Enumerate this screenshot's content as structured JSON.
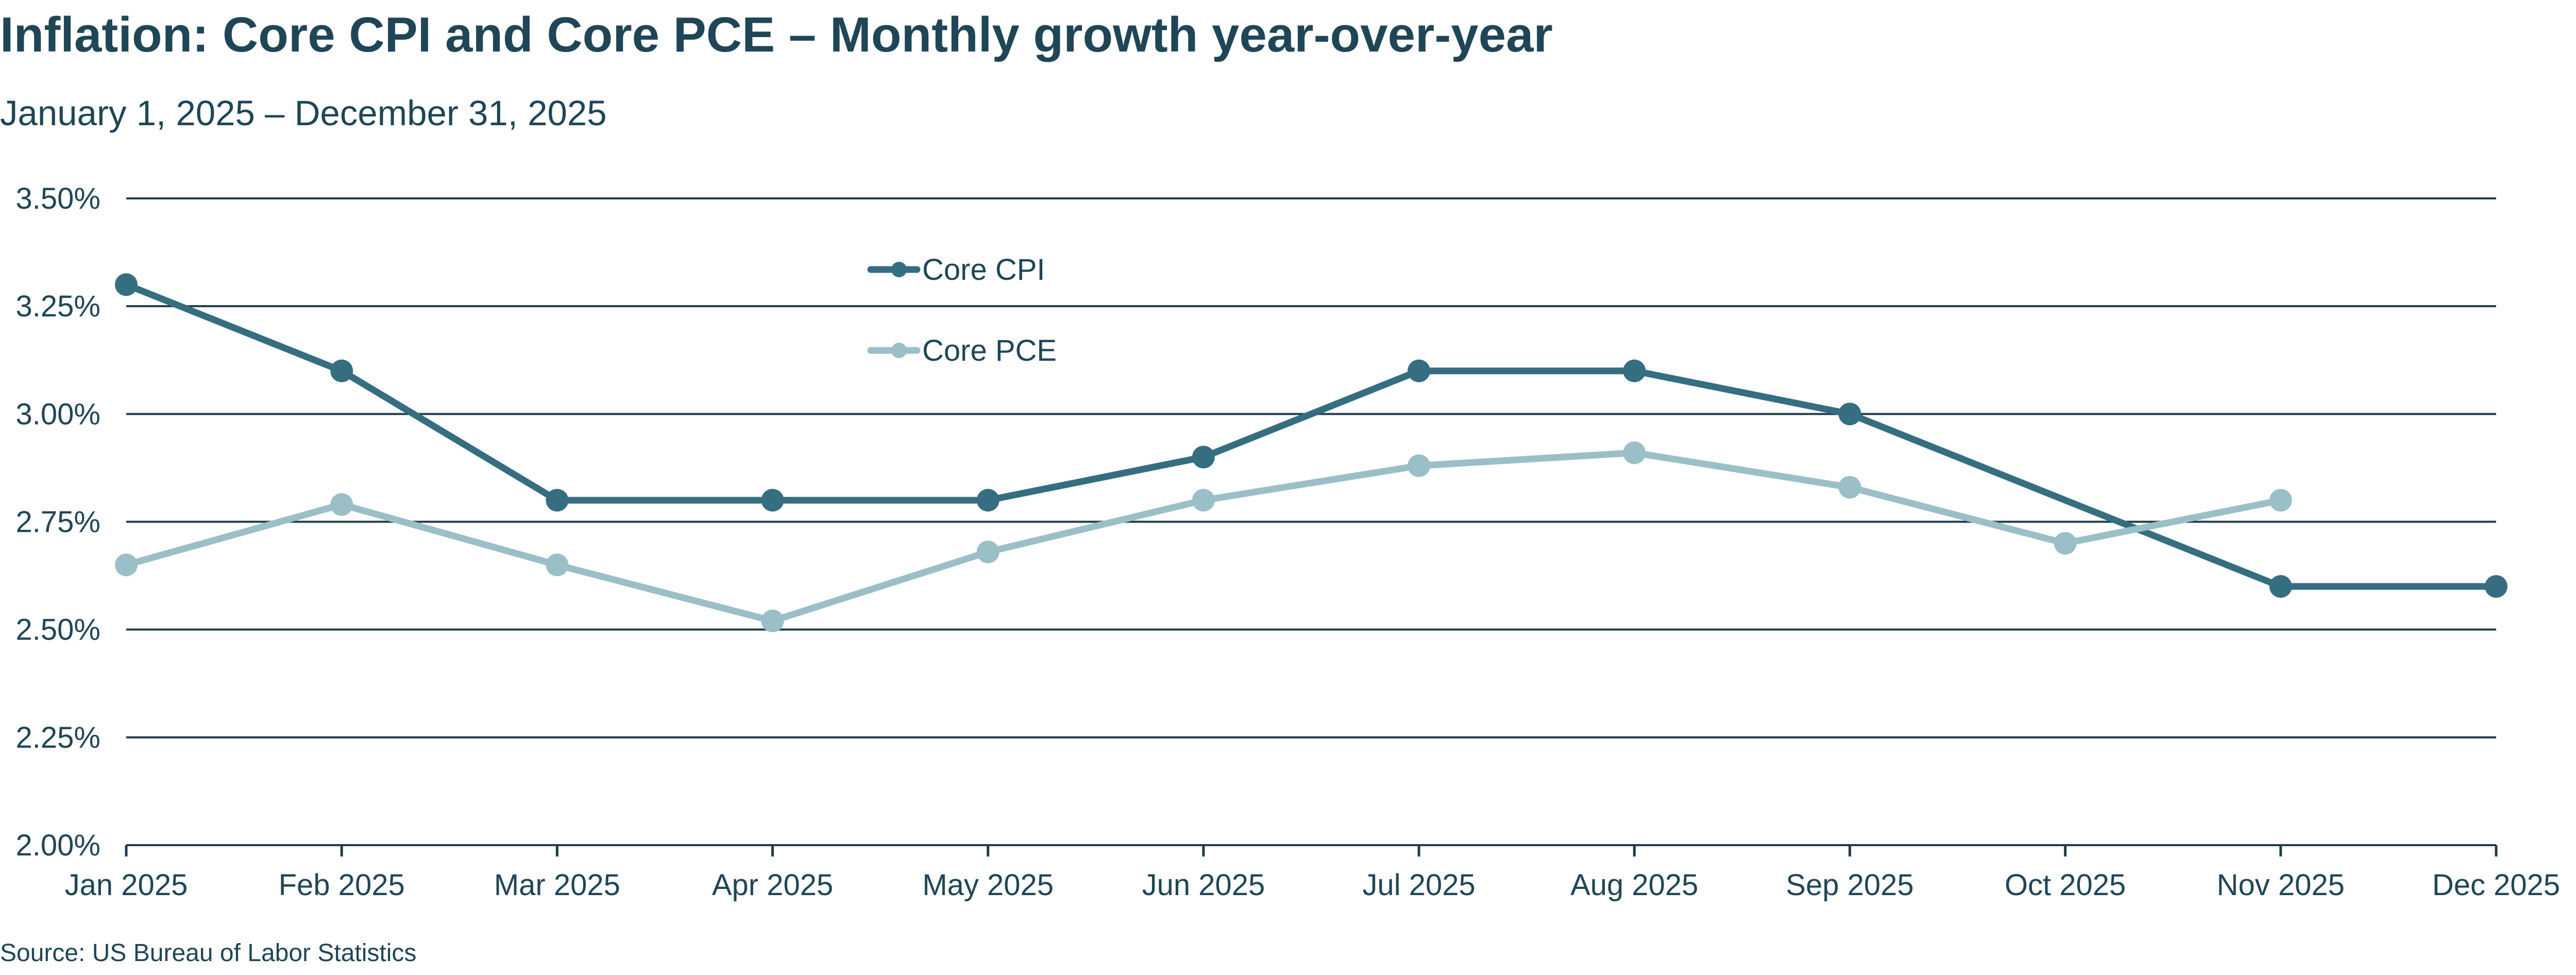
{
  "colors": {
    "text": "#1f4656",
    "grid": "#1f3c4a",
    "core_cpi": "#356e80",
    "core_pce": "#9bbfc6"
  },
  "chart_data": {
    "type": "line",
    "title": "Inflation: Core CPI and Core PCE – Monthly growth year-over-year",
    "subtitle": "January 1, 2025 – December 31, 2025",
    "source": "Source: US Bureau of Labor Statistics",
    "xlabel": "",
    "ylabel": "",
    "categories": [
      "Jan 2025",
      "Feb 2025",
      "Mar 2025",
      "Apr 2025",
      "May 2025",
      "Jun 2025",
      "Jul 2025",
      "Aug 2025",
      "Sep 2025",
      "Oct 2025",
      "Nov 2025",
      "Dec 2025"
    ],
    "ylim": [
      2.0,
      3.5
    ],
    "yticks": [
      2.0,
      2.25,
      2.5,
      2.75,
      3.0,
      3.25,
      3.5
    ],
    "ytick_labels": [
      "2.00%",
      "2.25%",
      "2.50%",
      "2.75%",
      "3.00%",
      "3.25%",
      "3.50%"
    ],
    "grid": true,
    "legend_position": "top-center",
    "series": [
      {
        "name": "Core CPI",
        "color": "#356e80",
        "values": [
          3.3,
          3.1,
          2.8,
          2.8,
          2.8,
          2.9,
          3.1,
          3.1,
          3.0,
          null,
          2.6,
          2.6
        ]
      },
      {
        "name": "Core PCE",
        "color": "#9bbfc6",
        "values": [
          2.65,
          2.79,
          2.65,
          2.52,
          2.68,
          2.8,
          2.88,
          2.91,
          2.83,
          2.7,
          2.8,
          null
        ]
      }
    ]
  }
}
